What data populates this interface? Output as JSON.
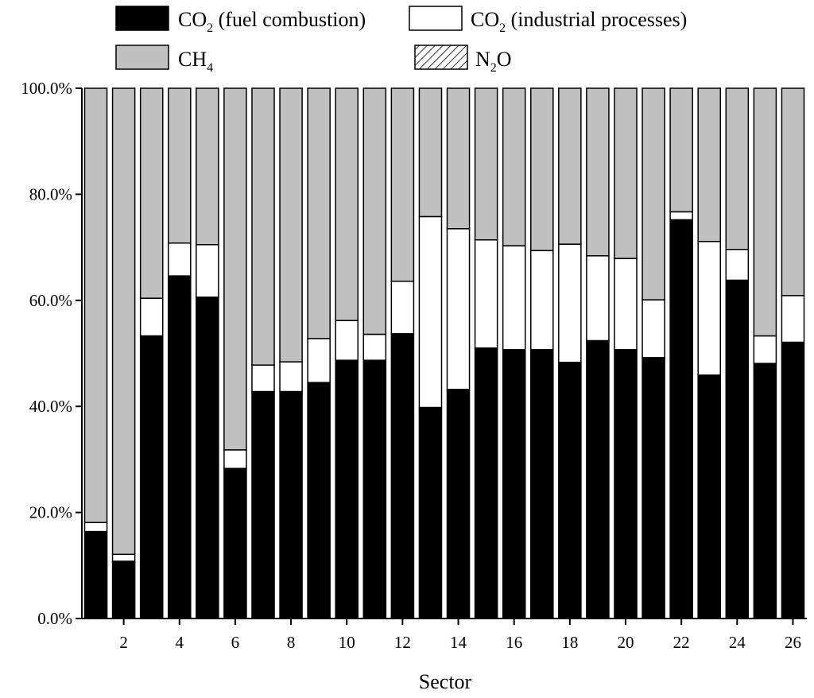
{
  "chart_data": {
    "type": "bar",
    "stacked": true,
    "xlabel": "Sector",
    "ylabel": "",
    "ylim": [
      0,
      100
    ],
    "y_ticks": [
      "0.0%",
      "20.0%",
      "40.0%",
      "60.0%",
      "80.0%",
      "100.0%"
    ],
    "x_tick_labels": [
      "2",
      "4",
      "6",
      "8",
      "10",
      "12",
      "14",
      "16",
      "18",
      "20",
      "22",
      "24",
      "26"
    ],
    "categories": [
      1,
      2,
      3,
      4,
      5,
      6,
      7,
      8,
      9,
      10,
      11,
      12,
      13,
      14,
      15,
      16,
      17,
      18,
      19,
      20,
      21,
      22,
      23,
      24,
      25,
      26
    ],
    "series": [
      {
        "name": "CO2 (fuel combustion)",
        "legend_base": "CO",
        "legend_sub": "2",
        "legend_suffix": " (fuel combustion)",
        "fill": "#000000",
        "values": [
          16.4,
          10.8,
          53.3,
          64.6,
          60.6,
          28.3,
          42.8,
          42.8,
          44.5,
          48.7,
          48.7,
          53.7,
          39.8,
          43.2,
          51.0,
          50.7,
          50.7,
          48.3,
          52.4,
          50.7,
          49.2,
          75.2,
          45.9,
          63.8,
          48.1,
          52.1
        ]
      },
      {
        "name": "CO2 (industrial processes)",
        "legend_base": "CO",
        "legend_sub": "2",
        "legend_suffix": " (industrial processes)",
        "fill": "#ffffff",
        "values": [
          1.7,
          1.3,
          7.1,
          6.2,
          9.9,
          3.5,
          5.0,
          5.6,
          8.3,
          7.5,
          4.9,
          9.9,
          36.0,
          30.3,
          20.4,
          19.6,
          18.7,
          22.3,
          16.0,
          17.2,
          10.9,
          1.5,
          25.2,
          5.8,
          5.2,
          8.8
        ]
      },
      {
        "name": "CH4",
        "legend_base": "CH",
        "legend_sub": "4",
        "legend_suffix": "",
        "fill": "#c0c0c0",
        "values": [
          81.9,
          87.9,
          39.6,
          29.2,
          29.5,
          68.2,
          52.2,
          51.6,
          47.2,
          43.8,
          46.4,
          36.4,
          24.2,
          26.5,
          28.6,
          29.7,
          30.6,
          29.4,
          31.6,
          32.1,
          39.9,
          23.3,
          28.9,
          30.4,
          46.7,
          39.1
        ]
      },
      {
        "name": "N2O",
        "legend_base": "N",
        "legend_sub": "2",
        "legend_suffix": "O",
        "fill": "hatch",
        "values": [
          0,
          0,
          0,
          0,
          0,
          0,
          0,
          0,
          0,
          0,
          0,
          0,
          0,
          0,
          0,
          0,
          0,
          0,
          0,
          0,
          0,
          0,
          0,
          0,
          0,
          0
        ]
      }
    ]
  }
}
